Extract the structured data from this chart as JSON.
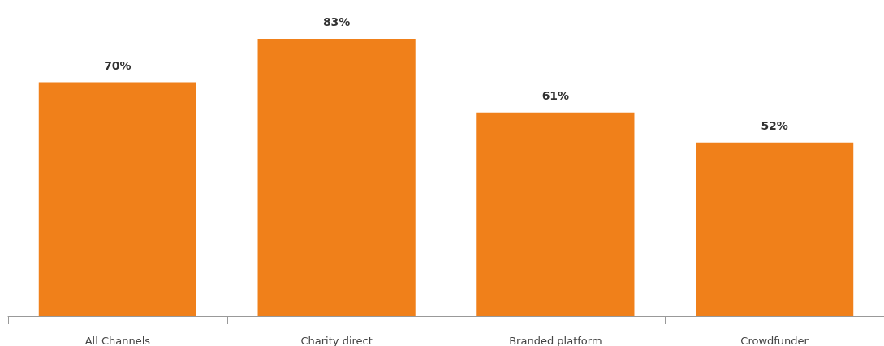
{
  "chart_data": {
    "type": "bar",
    "categories": [
      "All Channels",
      "Charity direct",
      "Branded platform",
      "Crowdfunder"
    ],
    "values": [
      70,
      83,
      61,
      52
    ],
    "value_labels": [
      "70%",
      "83%",
      "61%",
      "52%"
    ],
    "color": "#f0801a"
  }
}
